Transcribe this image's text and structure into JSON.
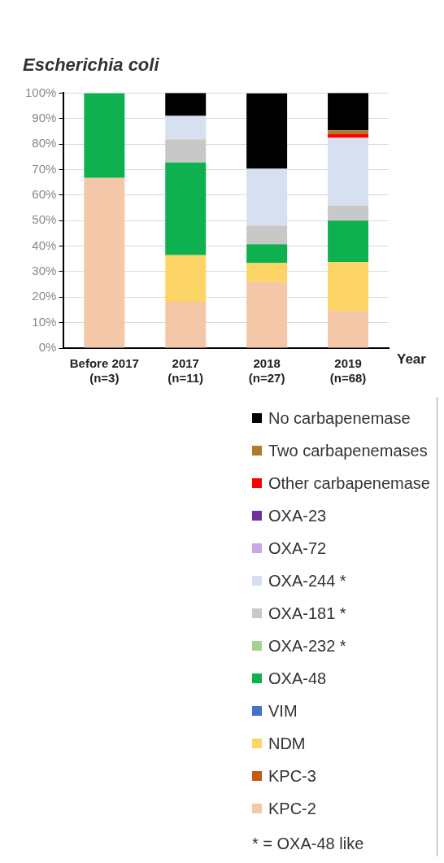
{
  "chart_data": {
    "type": "bar",
    "title": "Escherichia coli",
    "xlabel": "Year",
    "categories": [
      "Before 2017\n(n=3)",
      "2017\n(n=11)",
      "2018\n(n=27)",
      "2019\n(n=68)"
    ],
    "stacked": true,
    "ylim": [
      0,
      100
    ],
    "yticks": [
      {
        "value": 0,
        "label": "0%"
      },
      {
        "value": 10,
        "label": "10%"
      },
      {
        "value": 20,
        "label": "20%"
      },
      {
        "value": 30,
        "label": "30%"
      },
      {
        "value": 40,
        "label": "40%"
      },
      {
        "value": 50,
        "label": "50%"
      },
      {
        "value": 60,
        "label": "60%"
      },
      {
        "value": 70,
        "label": "70%"
      },
      {
        "value": 80,
        "label": "80%"
      },
      {
        "value": 90,
        "label": "90%"
      },
      {
        "value": 100,
        "label": "100%"
      }
    ],
    "grid": "y",
    "legend": "bottom right",
    "series": [
      {
        "name": "KPC-2",
        "color": "#f4c7a8",
        "values": [
          66.7,
          18.2,
          25.9,
          14.7
        ]
      },
      {
        "name": "KPC-3",
        "color": "#c55a11",
        "values": [
          0,
          0,
          0,
          0
        ]
      },
      {
        "name": "NDM",
        "color": "#fcd566",
        "values": [
          0,
          18.2,
          7.4,
          19.1
        ]
      },
      {
        "name": "VIM",
        "color": "#4472c4",
        "values": [
          0,
          0,
          0,
          0
        ]
      },
      {
        "name": "OXA-48",
        "color": "#0fb04f",
        "values": [
          33.3,
          36.4,
          7.4,
          16.2
        ]
      },
      {
        "name": "OXA-232 *",
        "color": "#a9d18e",
        "values": [
          0,
          0,
          0,
          0
        ]
      },
      {
        "name": "OXA-181 *",
        "color": "#c8c8c8",
        "values": [
          0,
          9.1,
          7.4,
          5.9
        ]
      },
      {
        "name": "OXA-244 *",
        "color": "#d6e0f0",
        "values": [
          0,
          9.1,
          22.2,
          26.5
        ]
      },
      {
        "name": "OXA-72",
        "color": "#c9a8e6",
        "values": [
          0,
          0,
          0,
          0
        ]
      },
      {
        "name": "OXA-23",
        "color": "#7030a0",
        "values": [
          0,
          0,
          0,
          0
        ]
      },
      {
        "name": "Other carbapenemase",
        "color": "#ff0000",
        "values": [
          0,
          0,
          0,
          1.5
        ]
      },
      {
        "name": "Two carbapenemases",
        "color": "#b07a2a",
        "values": [
          0,
          0,
          0,
          1.5
        ]
      },
      {
        "name": "No carbapenemase",
        "color": "#000000",
        "values": [
          0,
          9.1,
          29.6,
          14.7
        ]
      }
    ],
    "annotations": [
      "* = OXA-48 like"
    ]
  }
}
